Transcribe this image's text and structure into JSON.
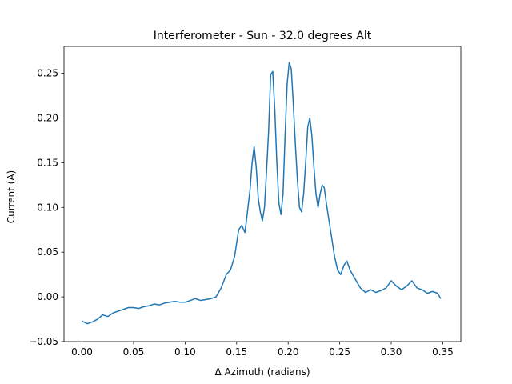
{
  "chart_data": {
    "type": "line",
    "title": "Interferometer - Sun - 32.0 degrees Alt",
    "xlabel": "Δ Azimuth (radians)",
    "ylabel": "Current (A)",
    "xlim": [
      -0.0175,
      0.3675
    ],
    "ylim": [
      -0.05,
      0.28
    ],
    "xticks": [
      0.0,
      0.05,
      0.1,
      0.15,
      0.2,
      0.25,
      0.3,
      0.35
    ],
    "xtick_labels": [
      "0.00",
      "0.05",
      "0.10",
      "0.15",
      "0.20",
      "0.25",
      "0.30",
      "0.35"
    ],
    "yticks": [
      -0.05,
      0.0,
      0.05,
      0.1,
      0.15,
      0.2,
      0.25
    ],
    "ytick_labels": [
      "−0.05",
      "0.00",
      "0.05",
      "0.10",
      "0.15",
      "0.20",
      "0.25"
    ],
    "grid": false,
    "line_color": "#1f77b4",
    "series": [
      {
        "x": [
          0.0,
          0.005,
          0.01,
          0.015,
          0.02,
          0.025,
          0.03,
          0.035,
          0.04,
          0.045,
          0.05,
          0.055,
          0.06,
          0.065,
          0.07,
          0.075,
          0.08,
          0.085,
          0.09,
          0.095,
          0.1,
          0.105,
          0.11,
          0.115,
          0.12,
          0.125,
          0.13,
          0.135,
          0.14,
          0.144,
          0.148,
          0.15,
          0.152,
          0.155,
          0.158,
          0.16,
          0.163,
          0.165,
          0.167,
          0.169,
          0.171,
          0.173,
          0.175,
          0.177,
          0.179,
          0.181,
          0.183,
          0.185,
          0.187,
          0.189,
          0.191,
          0.193,
          0.195,
          0.197,
          0.199,
          0.201,
          0.203,
          0.205,
          0.207,
          0.209,
          0.211,
          0.213,
          0.215,
          0.217,
          0.219,
          0.221,
          0.223,
          0.225,
          0.227,
          0.229,
          0.231,
          0.233,
          0.235,
          0.237,
          0.239,
          0.241,
          0.243,
          0.245,
          0.248,
          0.251,
          0.254,
          0.257,
          0.26,
          0.265,
          0.27,
          0.275,
          0.28,
          0.285,
          0.29,
          0.295,
          0.3,
          0.305,
          0.31,
          0.315,
          0.32,
          0.325,
          0.33,
          0.335,
          0.34,
          0.345,
          0.348
        ],
        "y": [
          -0.027,
          -0.03,
          -0.028,
          -0.025,
          -0.02,
          -0.022,
          -0.018,
          -0.016,
          -0.014,
          -0.012,
          -0.012,
          -0.013,
          -0.011,
          -0.01,
          -0.008,
          -0.009,
          -0.007,
          -0.006,
          -0.005,
          -0.006,
          -0.006,
          -0.004,
          -0.002,
          -0.004,
          -0.003,
          -0.002,
          0.0,
          0.01,
          0.025,
          0.03,
          0.045,
          0.06,
          0.075,
          0.08,
          0.072,
          0.09,
          0.12,
          0.15,
          0.168,
          0.145,
          0.11,
          0.095,
          0.085,
          0.1,
          0.14,
          0.185,
          0.248,
          0.252,
          0.21,
          0.15,
          0.105,
          0.092,
          0.115,
          0.18,
          0.238,
          0.262,
          0.255,
          0.215,
          0.17,
          0.13,
          0.1,
          0.095,
          0.115,
          0.15,
          0.19,
          0.2,
          0.18,
          0.145,
          0.115,
          0.1,
          0.115,
          0.125,
          0.122,
          0.105,
          0.09,
          0.075,
          0.06,
          0.045,
          0.03,
          0.025,
          0.035,
          0.04,
          0.03,
          0.02,
          0.01,
          0.005,
          0.008,
          0.005,
          0.007,
          0.01,
          0.018,
          0.012,
          0.008,
          0.012,
          0.018,
          0.01,
          0.008,
          0.004,
          0.006,
          0.004,
          -0.002
        ]
      }
    ]
  }
}
